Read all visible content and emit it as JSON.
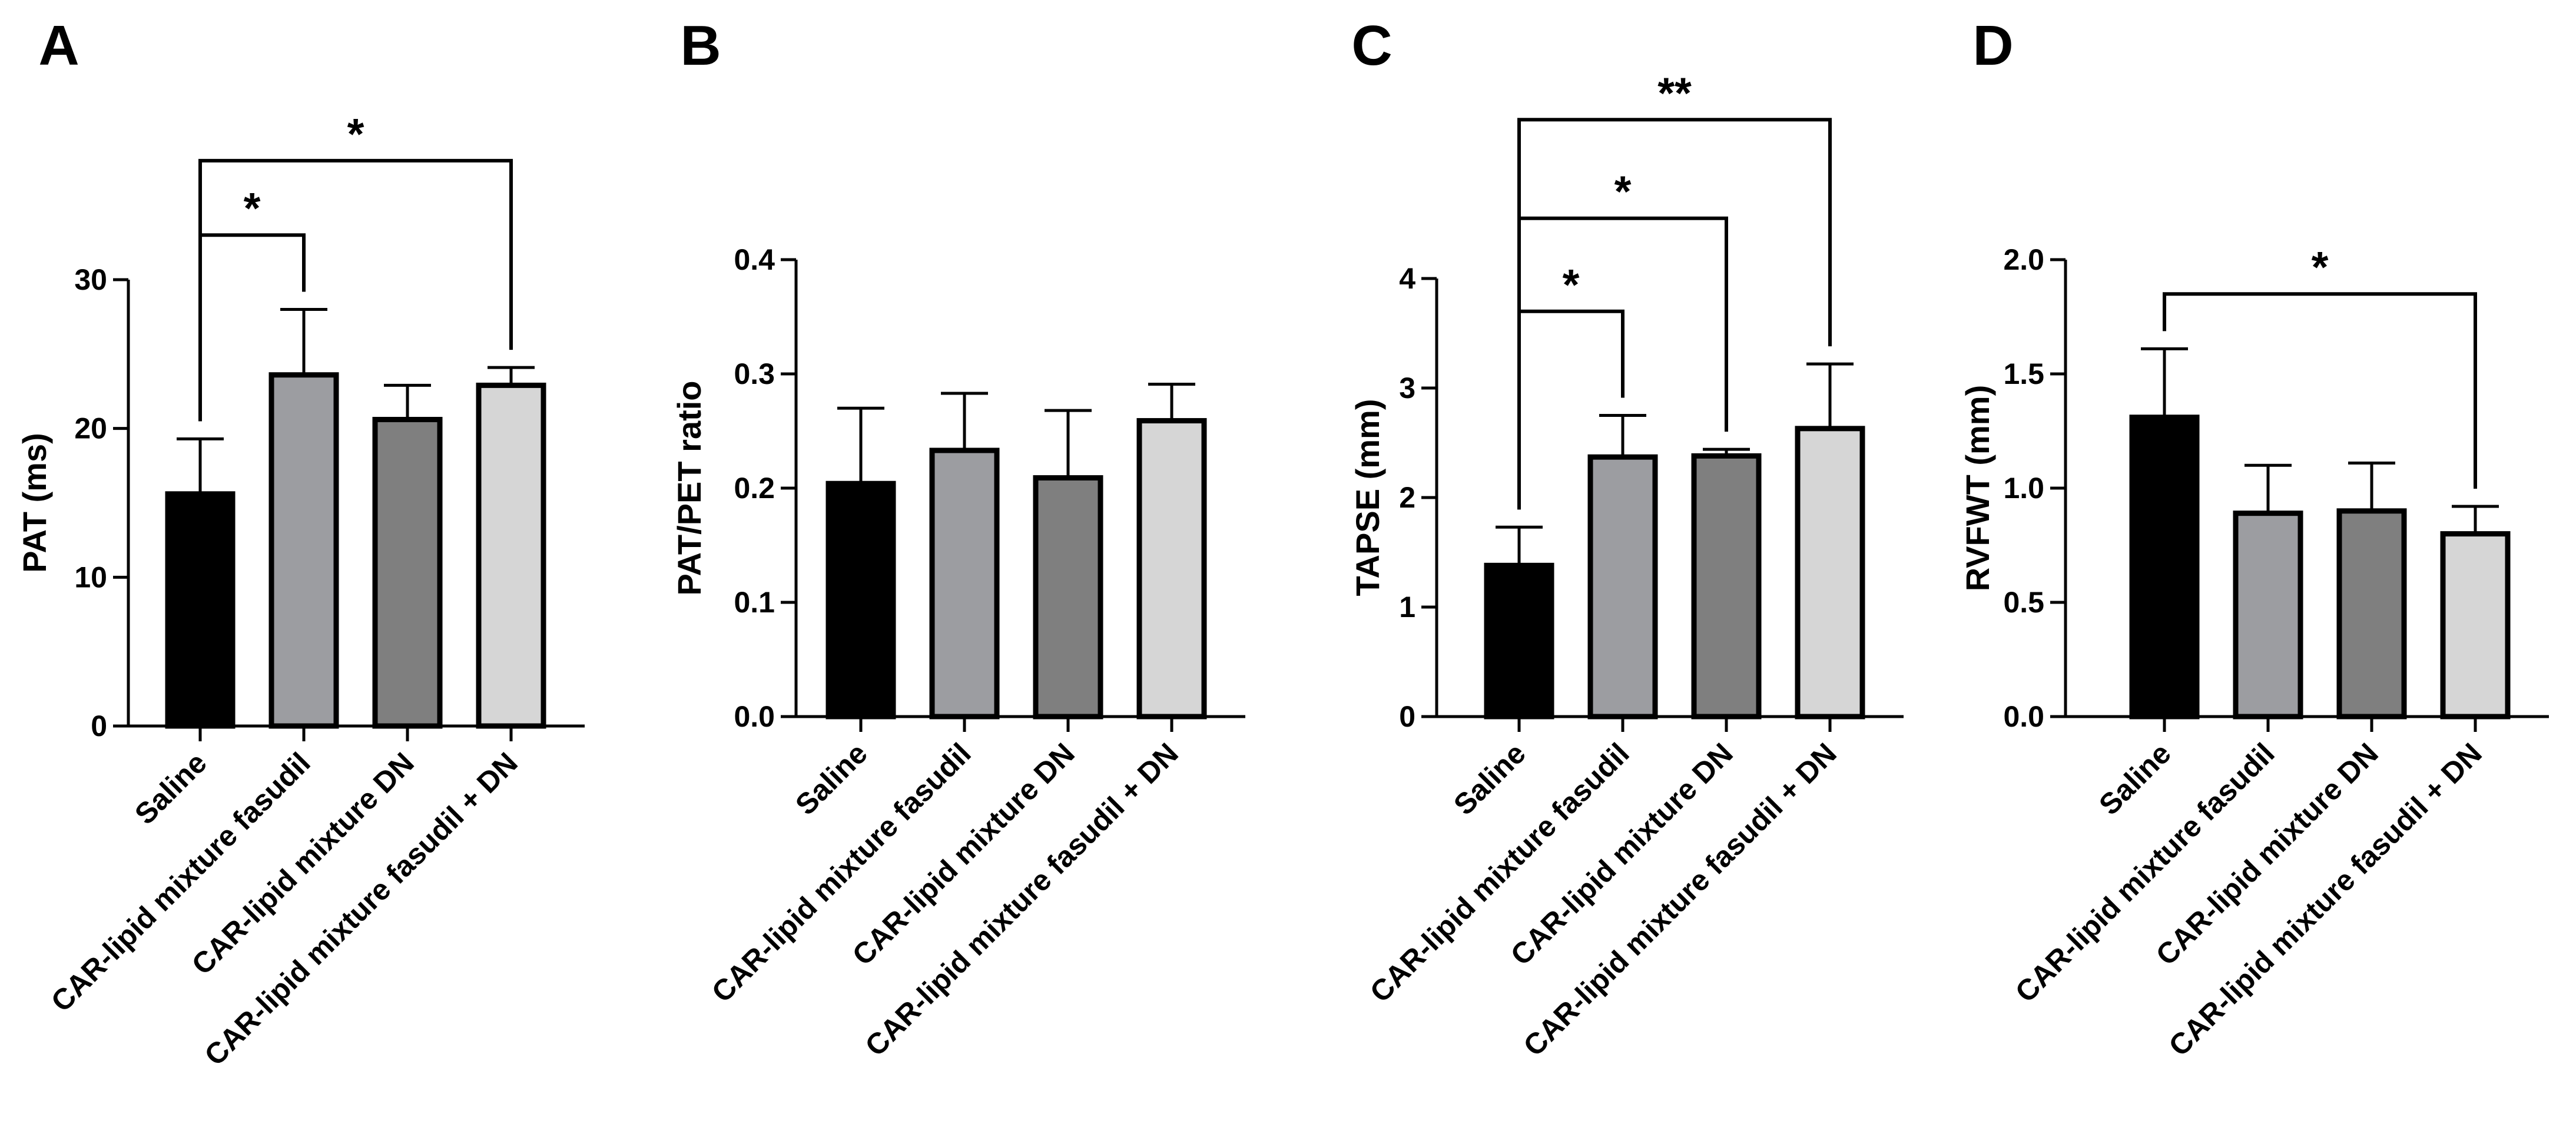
{
  "colors": {
    "saline": "#000000",
    "fasudil": "#9c9da1",
    "dn": "#7f7f7f",
    "combo": "#d6d6d6"
  },
  "chart_data": [
    {
      "panel": "A",
      "type": "bar",
      "ylabel": "PAT (ms)",
      "ylim": [
        0,
        30
      ],
      "yticks": [
        0,
        10,
        20,
        30
      ],
      "categories": [
        "Saline",
        "CAR-lipid mixture fasudil",
        "CAR-lipid mixture DN",
        "CAR-lipid mixture fasudil + DN"
      ],
      "values": [
        15.6,
        23.6,
        20.6,
        22.9
      ],
      "errors": [
        3.7,
        4.4,
        2.3,
        1.2
      ],
      "significance": [
        {
          "from": 0,
          "to": 1,
          "label": "*",
          "level": 33
        },
        {
          "from": 0,
          "to": 3,
          "label": "*",
          "level": 38
        }
      ]
    },
    {
      "panel": "B",
      "type": "bar",
      "ylabel": "PAT/PET ratio",
      "ylim": [
        0,
        0.4
      ],
      "yticks": [
        "0.0",
        "0.1",
        "0.2",
        "0.3",
        "0.4"
      ],
      "categories": [
        "Saline",
        "CAR-lipid mixture fasudil",
        "CAR-lipid mixture DN",
        "CAR-lipid mixture fasudil + DN"
      ],
      "values": [
        0.204,
        0.233,
        0.209,
        0.259
      ],
      "errors": [
        0.066,
        0.05,
        0.059,
        0.032
      ],
      "significance": []
    },
    {
      "panel": "C",
      "type": "bar",
      "ylabel": "TAPSE (mm)",
      "ylim": [
        0,
        4
      ],
      "yticks": [
        0,
        1,
        2,
        3,
        4
      ],
      "categories": [
        "Saline",
        "CAR-lipid mixture fasudil",
        "CAR-lipid mixture DN",
        "CAR-lipid mixture fasudil + DN"
      ],
      "values": [
        1.38,
        2.37,
        2.38,
        2.63
      ],
      "errors": [
        0.35,
        0.38,
        0.06,
        0.59
      ],
      "significance": [
        {
          "from": 0,
          "to": 1,
          "label": "*",
          "level": 3.7
        },
        {
          "from": 0,
          "to": 2,
          "label": "*",
          "level": 4.55
        },
        {
          "from": 0,
          "to": 3,
          "label": "**",
          "level": 5.45
        }
      ]
    },
    {
      "panel": "D",
      "type": "bar",
      "ylabel": "RVFWT  (mm)",
      "ylim": [
        0,
        2
      ],
      "yticks": [
        "0.0",
        "0.5",
        "1.0",
        "1.5",
        "2.0"
      ],
      "categories": [
        "Saline",
        "CAR-lipid mixture fasudil",
        "CAR-lipid mixture DN",
        "CAR-lipid mixture fasudil + DN"
      ],
      "values": [
        1.31,
        0.89,
        0.9,
        0.8
      ],
      "errors": [
        0.3,
        0.21,
        0.21,
        0.12
      ],
      "significance": [
        {
          "from": 0,
          "to": 3,
          "label": "*",
          "level": 1.85
        }
      ]
    }
  ]
}
